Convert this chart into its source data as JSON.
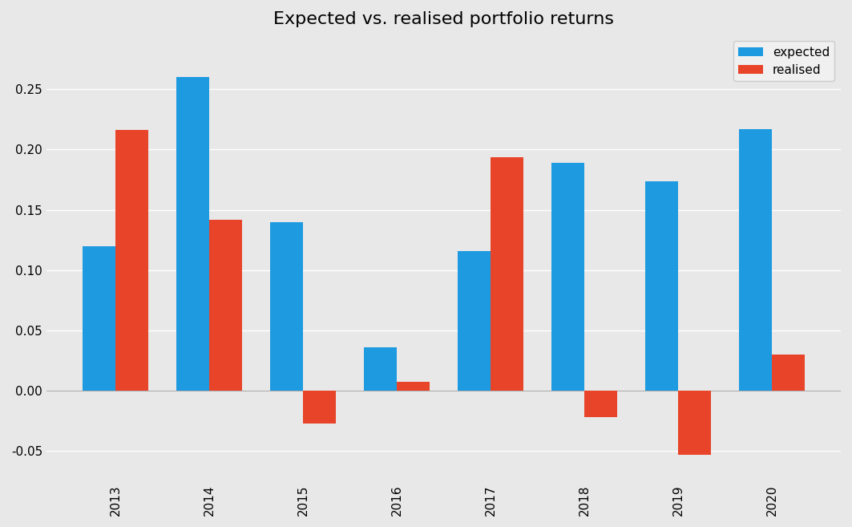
{
  "title": "Expected vs. realised portfolio returns",
  "years": [
    2013,
    2014,
    2015,
    2016,
    2017,
    2018,
    2019,
    2020
  ],
  "expected": [
    0.12,
    0.26,
    0.14,
    0.036,
    0.116,
    0.189,
    0.174,
    0.217
  ],
  "realised": [
    0.216,
    0.142,
    -0.027,
    0.007,
    0.194,
    -0.022,
    -0.053,
    0.03
  ],
  "expected_color": "#1E9AE0",
  "realised_color": "#E8442A",
  "bar_width": 0.35,
  "background_color": "#E8E8E8",
  "grid_color": "#FFFFFF",
  "ylim": [
    -0.075,
    0.295
  ],
  "yticks": [
    -0.05,
    0.0,
    0.05,
    0.1,
    0.15,
    0.2,
    0.25
  ],
  "legend_labels": [
    "expected",
    "realised"
  ],
  "title_fontsize": 16,
  "tick_fontsize": 11,
  "legend_fontsize": 11,
  "legend_bg": "#F0F0F0",
  "legend_edge": "#CCCCCC"
}
